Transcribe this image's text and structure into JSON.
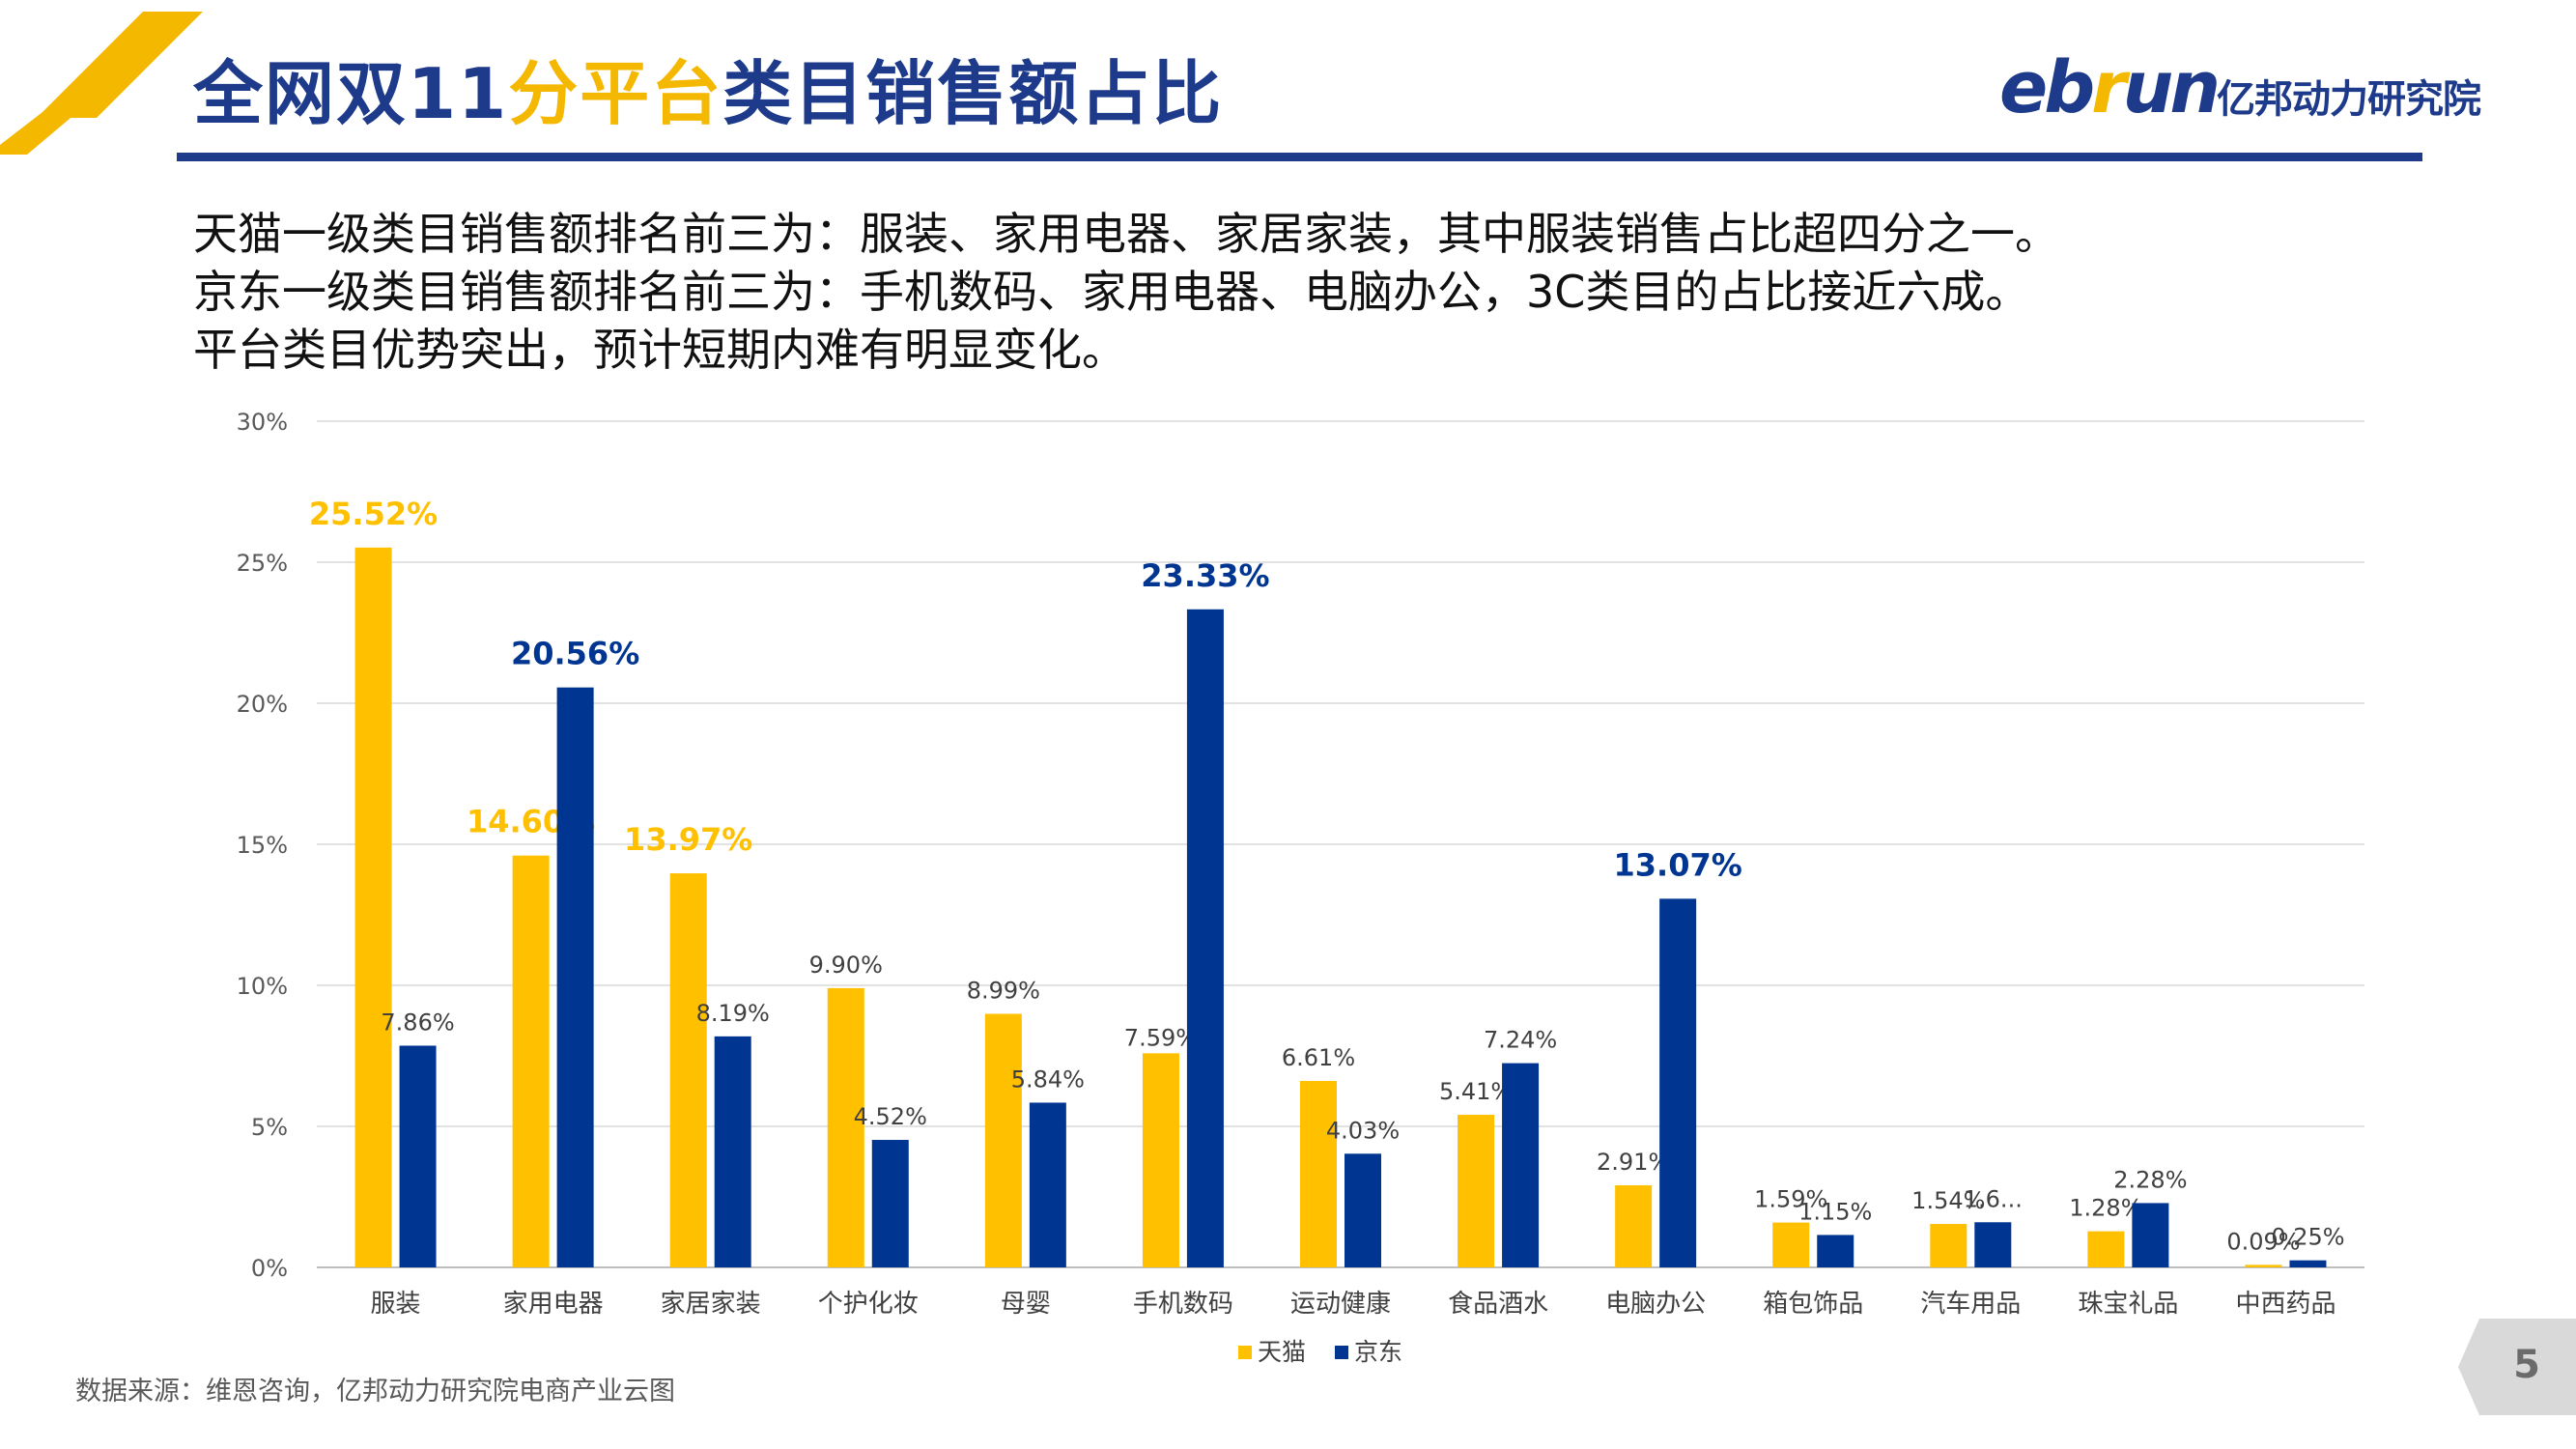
{
  "header": {
    "title_part1": "全网双11",
    "title_highlight": "分平台",
    "title_part2": "类目销售额占比",
    "brand_e": "eb",
    "brand_r": "r",
    "brand_u": "un",
    "brand_sub": "亿邦动力研究院"
  },
  "summary": {
    "line1": "天猫一级类目销售额排名前三为：服装、家用电器、家居家装，其中服装销售占比超四分之一。",
    "line2": "京东一级类目销售额排名前三为：手机数码、家用电器、电脑办公，3C类目的占比接近六成。",
    "line3": "平台类目优势突出，预计短期内难有明显变化。"
  },
  "footer": {
    "source": "数据来源：维恩咨询，亿邦动力研究院电商产业云图",
    "page": "5"
  },
  "colors": {
    "tmall": "#ffc000",
    "jd": "#003591",
    "title_blue": "#1e3a8a",
    "highlight": "#f5b800",
    "grid": "#d9d9d9"
  },
  "chart_data": {
    "type": "bar",
    "categories": [
      "服装",
      "家用电器",
      "家居家装",
      "个护化妆",
      "母婴",
      "手机数码",
      "运动健康",
      "食品酒水",
      "电脑办公",
      "箱包饰品",
      "汽车用品",
      "珠宝礼品",
      "中西药品"
    ],
    "series": [
      {
        "name": "天猫",
        "values": [
          25.52,
          14.6,
          13.97,
          9.9,
          8.99,
          7.59,
          6.61,
          5.41,
          2.91,
          1.59,
          1.54,
          1.28,
          0.09
        ],
        "labels": [
          "25.52%",
          "14.60%",
          "13.97%",
          "9.90%",
          "8.99%",
          "7.59%",
          "6.61%",
          "5.41%",
          "2.91%",
          "1.59%",
          "1.54%",
          "1.28%",
          "0.09%"
        ],
        "emphasis": [
          true,
          true,
          true,
          false,
          false,
          false,
          false,
          false,
          false,
          false,
          false,
          false,
          false
        ]
      },
      {
        "name": "京东",
        "values": [
          7.86,
          20.56,
          8.19,
          4.52,
          5.84,
          23.33,
          4.03,
          7.24,
          13.07,
          1.15,
          1.6,
          2.28,
          0.25
        ],
        "labels": [
          "7.86%",
          "20.56%",
          "8.19%",
          "4.52%",
          "5.84%",
          "23.33%",
          "4.03%",
          "7.24%",
          "13.07%",
          "1.15%",
          "1.6...",
          "2.28%",
          "0.25%"
        ],
        "emphasis": [
          false,
          true,
          false,
          false,
          false,
          true,
          false,
          false,
          true,
          false,
          false,
          false,
          false
        ]
      }
    ],
    "ylim": [
      0,
      30
    ],
    "yticks": [
      "0%",
      "5%",
      "10%",
      "15%",
      "20%",
      "25%",
      "30%"
    ],
    "grid": true,
    "legend_position": "bottom"
  }
}
